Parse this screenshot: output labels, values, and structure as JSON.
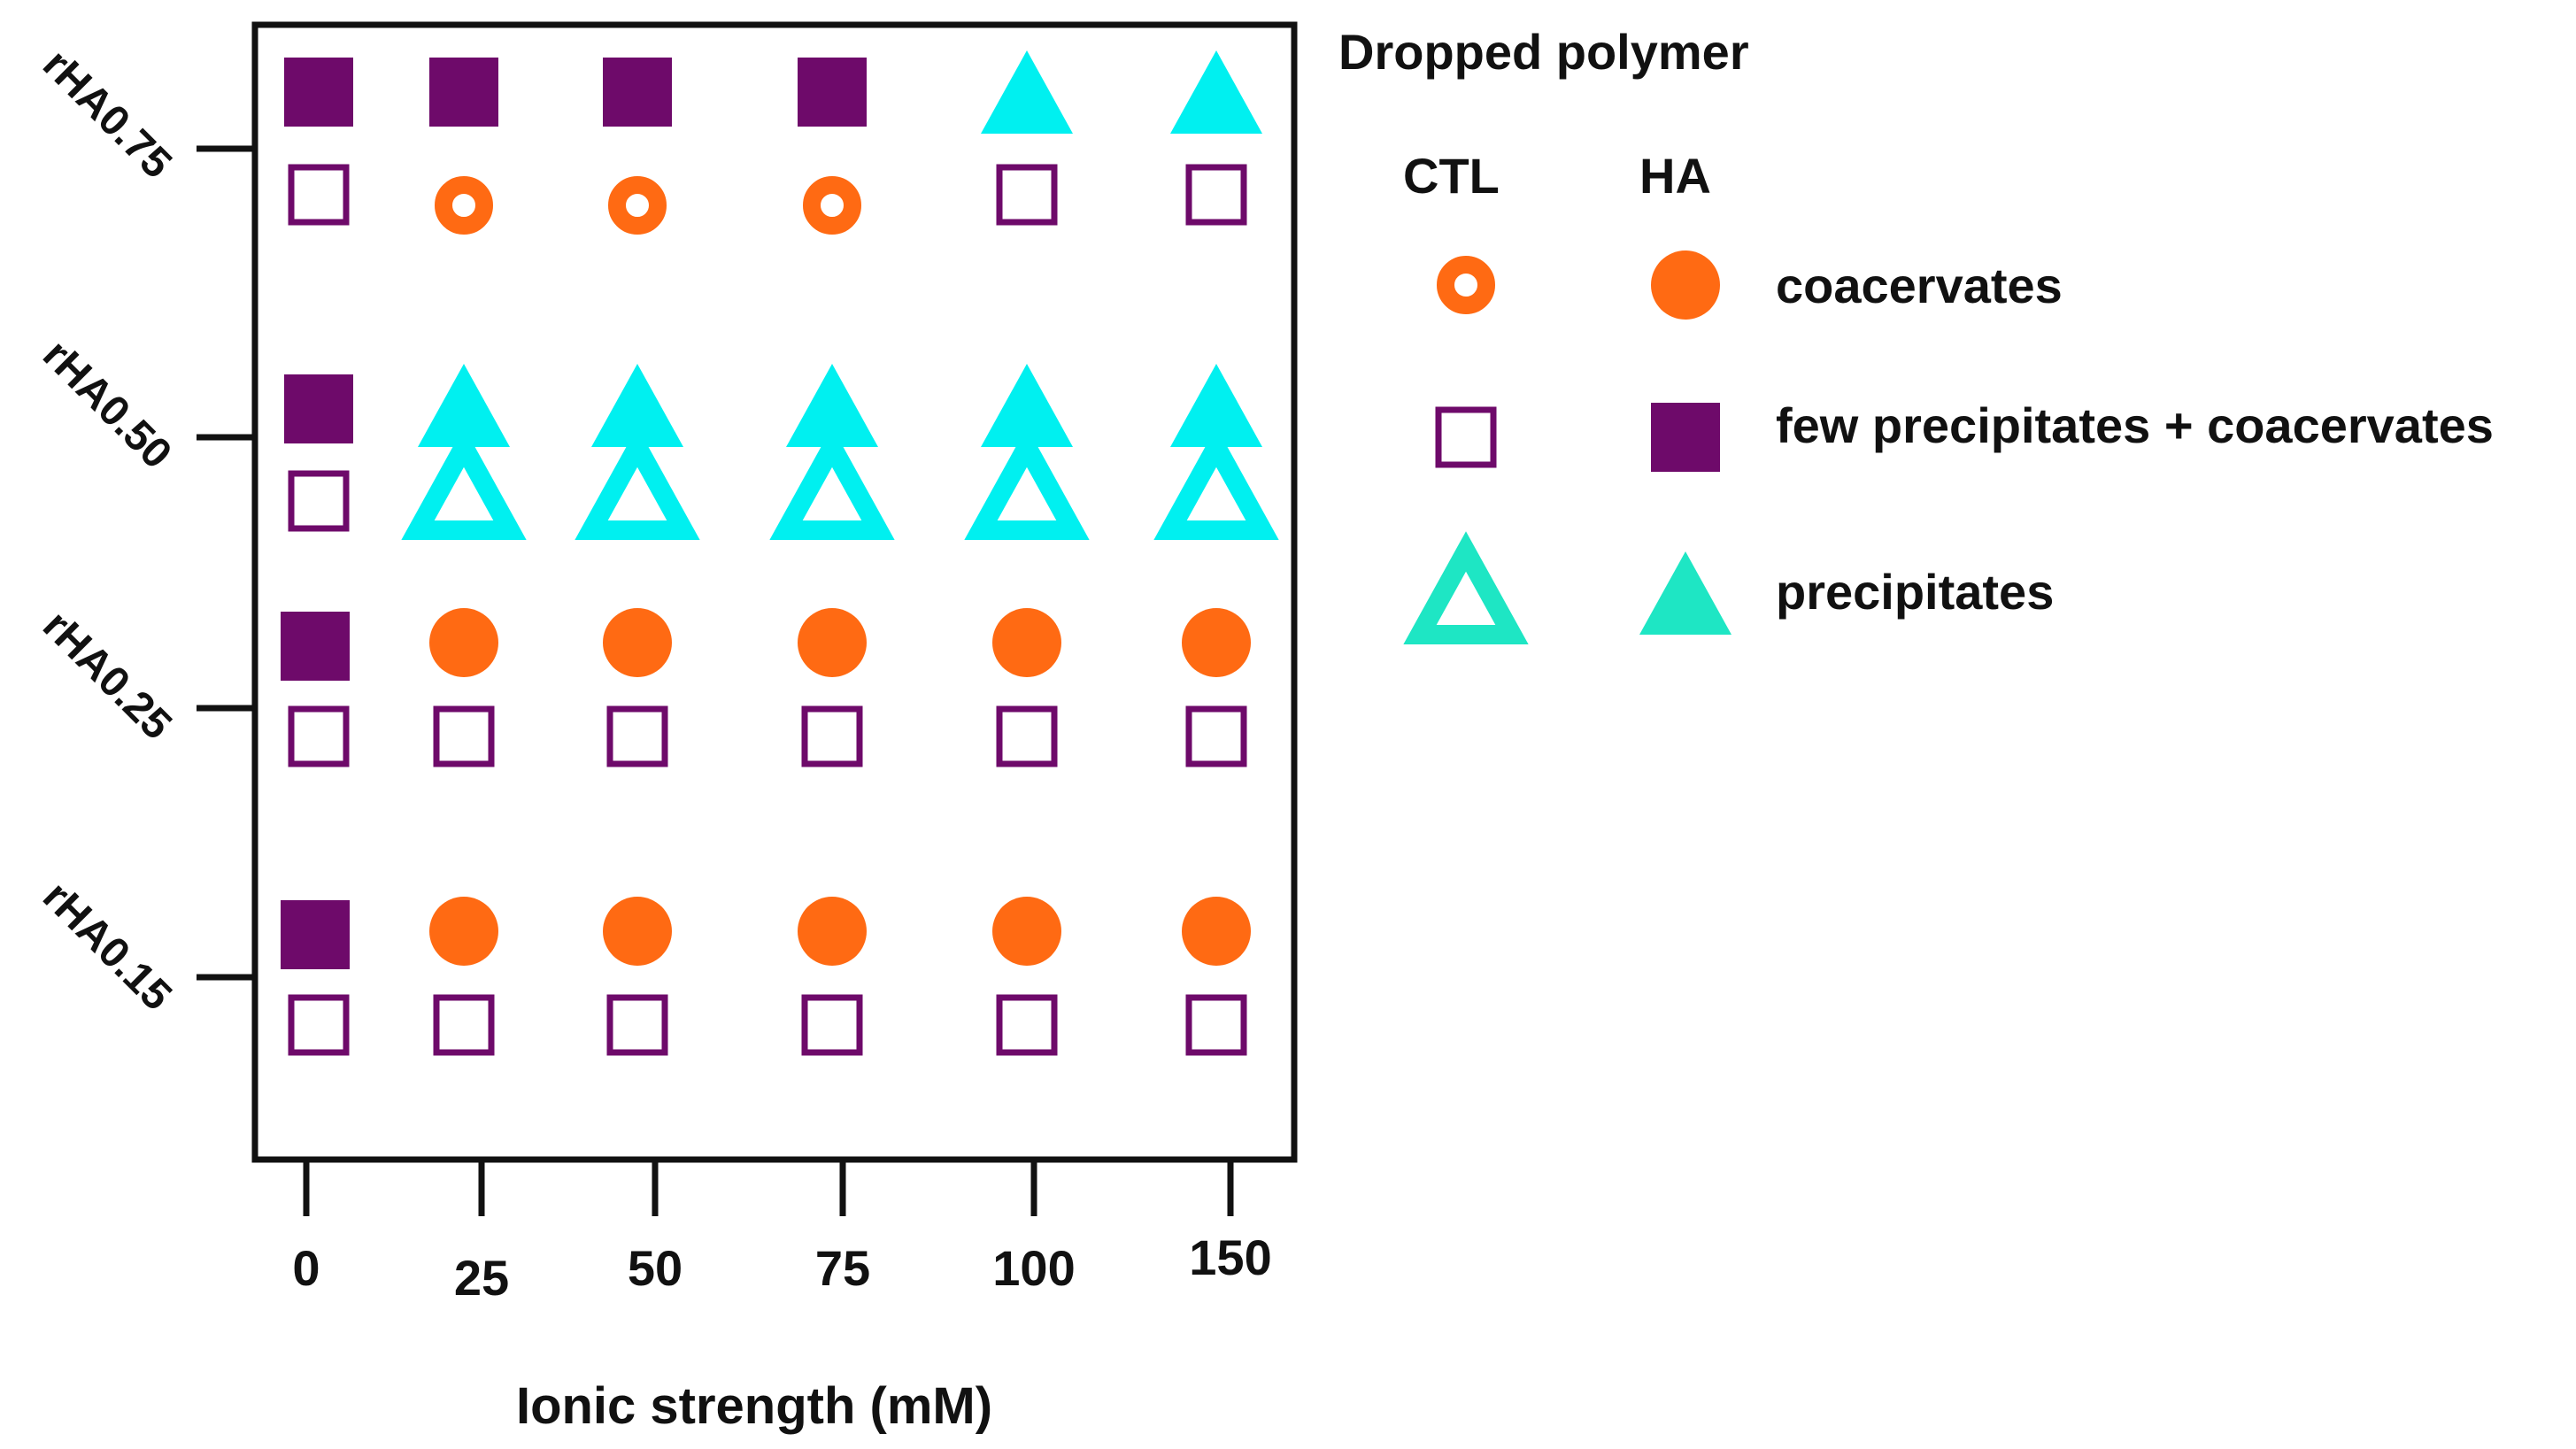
{
  "chart_data": {
    "type": "scatter",
    "title": "",
    "xlabel": "Ionic strength (mM)",
    "ylabel": "",
    "x_categories": [
      "0",
      "25",
      "50",
      "75",
      "100",
      "150"
    ],
    "y_categories": [
      "rHA0.15",
      "rHA0.25",
      "rHA0.50",
      "rHA0.75"
    ],
    "grid": false,
    "colors": {
      "orange": "#ff6a13",
      "purple": "#6e0a6a",
      "cyan": "#00f0f0",
      "teal": "#1ee6c4"
    },
    "legend": {
      "title": "Dropped polymer",
      "placement": "right",
      "columns": [
        "CTL",
        "HA"
      ],
      "entries": [
        {
          "label": "coacervates",
          "ctl_marker": "open-circle",
          "ha_marker": "filled-circle",
          "color": "orange"
        },
        {
          "label": "few precipitates + coacervates",
          "ctl_marker": "open-square",
          "ha_marker": "filled-square",
          "color": "purple"
        },
        {
          "label": "precipitates",
          "ctl_marker": "open-triangle",
          "ha_marker": "filled-triangle",
          "color": "teal"
        }
      ]
    },
    "series": [
      {
        "name": "HA",
        "row": "rHA0.75",
        "markers": [
          "filled-square",
          "filled-square",
          "filled-square",
          "filled-square",
          "filled-triangle",
          "filled-triangle"
        ]
      },
      {
        "name": "CTL",
        "row": "rHA0.75",
        "markers": [
          "open-square",
          "open-circle",
          "open-circle",
          "open-circle",
          "open-square",
          "open-square"
        ]
      },
      {
        "name": "HA",
        "row": "rHA0.50",
        "markers": [
          "filled-square",
          "filled-triangle",
          "filled-triangle",
          "filled-triangle",
          "filled-triangle",
          "filled-triangle"
        ]
      },
      {
        "name": "CTL",
        "row": "rHA0.50",
        "markers": [
          "open-square",
          "open-triangle",
          "open-triangle",
          "open-triangle",
          "open-triangle",
          "open-triangle"
        ]
      },
      {
        "name": "HA",
        "row": "rHA0.25",
        "markers": [
          "filled-square",
          "filled-circle",
          "filled-circle",
          "filled-circle",
          "filled-circle",
          "filled-circle"
        ]
      },
      {
        "name": "CTL",
        "row": "rHA0.25",
        "markers": [
          "open-square",
          "open-square",
          "open-square",
          "open-square",
          "open-square",
          "open-square"
        ]
      },
      {
        "name": "HA",
        "row": "rHA0.15",
        "markers": [
          "filled-square",
          "filled-circle",
          "filled-circle",
          "filled-circle",
          "filled-circle",
          "filled-circle"
        ]
      },
      {
        "name": "CTL",
        "row": "rHA0.15",
        "markers": [
          "open-square",
          "open-square",
          "open-square",
          "open-square",
          "open-square",
          "open-square"
        ]
      }
    ]
  }
}
